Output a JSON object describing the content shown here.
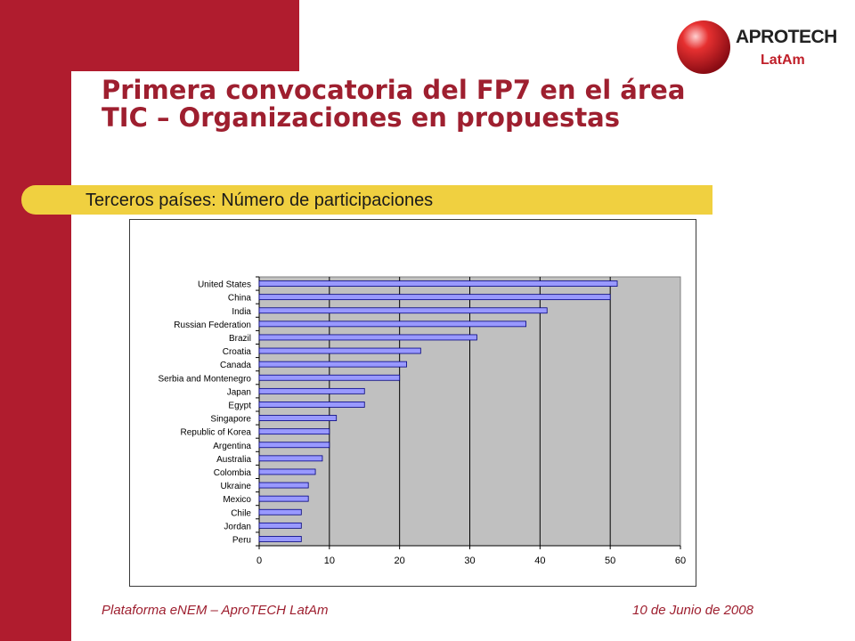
{
  "slide": {
    "title": "Primera convocatoria del FP7 en el área TIC – Organizaciones en propuestas",
    "subtitle": "Terceros países: Número de participaciones",
    "footer_left": "Plataforma eNEM – AproTECH LatAm",
    "footer_right": "10 de Junio de 2008",
    "logo": {
      "name": "APROTECH",
      "sub": "LatAm"
    }
  },
  "colors": {
    "accent_red": "#b01c2e",
    "title_red": "#9e1f2f",
    "band_yellow": "#f0d040",
    "bar_fill": "#9999ff",
    "plot_bg": "#c0c0c0"
  },
  "chart_data": {
    "type": "bar",
    "orientation": "horizontal",
    "categories": [
      "United States",
      "China",
      "India",
      "Russian Federation",
      "Brazil",
      "Croatia",
      "Canada",
      "Serbia and Montenegro",
      "Japan",
      "Egypt",
      "Singapore",
      "Republic of Korea",
      "Argentina",
      "Australia",
      "Colombia",
      "Ukraine",
      "Mexico",
      "Chile",
      "Jordan",
      "Peru"
    ],
    "values": [
      51,
      50,
      41,
      38,
      31,
      23,
      21,
      20,
      15,
      15,
      11,
      10,
      10,
      9,
      8,
      7,
      7,
      6,
      6,
      6
    ],
    "xticks": [
      "0",
      "10",
      "20",
      "30",
      "40",
      "50",
      "60"
    ],
    "xlim": [
      0,
      60
    ],
    "grid": true,
    "title": "",
    "xlabel": "",
    "ylabel": ""
  }
}
